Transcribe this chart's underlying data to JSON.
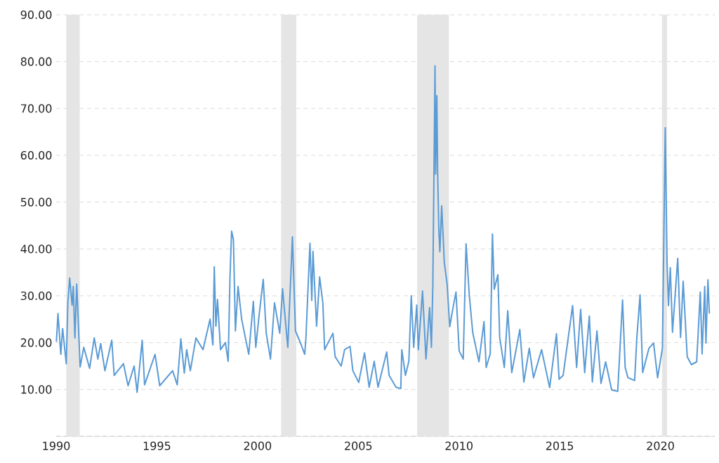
{
  "chart_data": {
    "type": "line",
    "color": "#5b9bd5",
    "grid": "y",
    "xlim": [
      1990,
      2022.7
    ],
    "ylim": [
      0,
      90
    ],
    "xticks": [
      1990,
      1995,
      2000,
      2005,
      2010,
      2015,
      2020
    ],
    "yticks": [
      {
        "value": 0,
        "label": null
      },
      {
        "value": 10,
        "label": "10.00"
      },
      {
        "value": 20,
        "label": "20.00"
      },
      {
        "value": 30,
        "label": "30.00"
      },
      {
        "value": 40,
        "label": "40.00"
      },
      {
        "value": 50,
        "label": "50.00"
      },
      {
        "value": 60,
        "label": "60.00"
      },
      {
        "value": 70,
        "label": "70.00"
      },
      {
        "value": 80,
        "label": "80.00"
      },
      {
        "value": 90,
        "label": "90.00"
      }
    ],
    "bands": [
      {
        "axis": "x",
        "from": 1990.5,
        "to": 1991.17,
        "color": "#e5e5e5"
      },
      {
        "axis": "x",
        "from": 2001.17,
        "to": 2001.92,
        "color": "#e5e5e5"
      },
      {
        "axis": "x",
        "from": 2007.92,
        "to": 2009.5,
        "color": "#e5e5e5"
      },
      {
        "axis": "x",
        "from": 2020.08,
        "to": 2020.33,
        "color": "#e5e5e5"
      }
    ],
    "x": [
      1990.01,
      1990.09,
      1990.23,
      1990.32,
      1990.5,
      1990.58,
      1990.67,
      1990.79,
      1990.85,
      1990.93,
      1991.02,
      1991.19,
      1991.37,
      1991.66,
      1991.89,
      1992.07,
      1992.21,
      1992.42,
      1992.76,
      1992.88,
      1993.34,
      1993.57,
      1993.87,
      1994.02,
      1994.27,
      1994.39,
      1994.91,
      1995.14,
      1995.78,
      1996.01,
      1996.19,
      1996.36,
      1996.48,
      1996.66,
      1996.94,
      1997.29,
      1997.64,
      1997.78,
      1997.85,
      1997.93,
      1998.01,
      1998.16,
      1998.4,
      1998.54,
      1998.63,
      1998.71,
      1998.8,
      1998.9,
      1999.03,
      1999.21,
      1999.56,
      1999.79,
      1999.91,
      2000.08,
      2000.28,
      2000.43,
      2000.64,
      2000.84,
      2001.1,
      2001.24,
      2001.5,
      2001.73,
      2001.88,
      2002.17,
      2002.34,
      2002.4,
      2002.6,
      2002.69,
      2002.75,
      2002.93,
      2003.08,
      2003.24,
      2003.33,
      2003.74,
      2003.85,
      2004.15,
      2004.32,
      2004.59,
      2004.73,
      2005.02,
      2005.31,
      2005.54,
      2005.79,
      2005.98,
      2006.41,
      2006.53,
      2006.87,
      2007.11,
      2007.16,
      2007.34,
      2007.51,
      2007.63,
      2007.75,
      2007.9,
      2007.98,
      2008.19,
      2008.36,
      2008.54,
      2008.63,
      2008.7,
      2008.81,
      2008.84,
      2008.9,
      2008.94,
      2009.0,
      2009.05,
      2009.14,
      2009.21,
      2009.27,
      2009.41,
      2009.54,
      2009.7,
      2009.85,
      2010.01,
      2010.21,
      2010.35,
      2010.51,
      2010.68,
      2010.99,
      2011.24,
      2011.35,
      2011.55,
      2011.66,
      2011.75,
      2011.93,
      2012.02,
      2012.25,
      2012.42,
      2012.62,
      2013.02,
      2013.22,
      2013.49,
      2013.7,
      2014.1,
      2014.5,
      2014.84,
      2014.97,
      2015.17,
      2015.64,
      2015.84,
      2016.04,
      2016.24,
      2016.47,
      2016.62,
      2016.85,
      2017.05,
      2017.28,
      2017.58,
      2017.88,
      2018.12,
      2018.25,
      2018.39,
      2018.72,
      2018.83,
      2018.99,
      2019.12,
      2019.43,
      2019.66,
      2019.86,
      2020.1,
      2020.24,
      2020.33,
      2020.4,
      2020.49,
      2020.6,
      2020.86,
      2021.0,
      2021.13,
      2021.33,
      2021.54,
      2021.8,
      2021.98,
      2022.07,
      2022.2,
      2022.26,
      2022.36,
      2022.43
    ],
    "values": [
      20.2,
      26.2,
      17.5,
      23,
      15.5,
      28.5,
      33.8,
      28,
      32,
      21,
      32.5,
      14.8,
      19,
      14.5,
      21,
      16.5,
      19.8,
      14,
      20.5,
      13,
      15.5,
      10.8,
      15,
      9.4,
      20.5,
      11,
      17.5,
      10.8,
      14,
      11,
      20.8,
      13.5,
      18.5,
      14,
      21,
      18.5,
      25,
      19.5,
      36.2,
      23.5,
      29.2,
      18.5,
      20,
      16,
      34,
      43.8,
      42,
      22.5,
      32,
      25,
      17.5,
      28.8,
      19,
      26,
      33.5,
      22,
      16.5,
      28.5,
      22,
      31.5,
      19,
      42.6,
      22.5,
      19.5,
      17.5,
      21,
      41.2,
      29,
      39.5,
      23.5,
      34,
      28.5,
      18.5,
      22,
      17,
      15,
      18.5,
      19.2,
      14,
      11.5,
      17.8,
      10.5,
      16,
      10.5,
      18,
      13,
      10.5,
      10.2,
      18.5,
      13,
      16,
      30,
      19,
      28,
      18.5,
      31,
      16.5,
      27.5,
      19,
      32,
      79.1,
      56,
      72.7,
      56,
      44,
      39.4,
      49.2,
      42.9,
      37.1,
      32.5,
      23.4,
      27.4,
      30.8,
      18.2,
      16.5,
      41.1,
      30.2,
      22.2,
      15.9,
      24.5,
      14.7,
      17.6,
      43.2,
      31.4,
      34.5,
      21.1,
      14.7,
      26.8,
      13.6,
      22.8,
      11.6,
      18.8,
      12.5,
      18.5,
      10.4,
      21.9,
      12.2,
      13,
      27.9,
      14.7,
      27.1,
      13.6,
      25.7,
      11.6,
      22.5,
      11.3,
      15.9,
      9.9,
      9.6,
      29.1,
      14.7,
      12.5,
      11.9,
      21.1,
      30.2,
      13.6,
      18.8,
      19.9,
      12.5,
      18.8,
      65.9,
      37.1,
      27.9,
      36,
      22.2,
      38,
      21.1,
      33.1,
      17,
      15.3,
      15.9,
      30.8,
      17.6,
      32,
      19.9,
      33.4,
      26.2
    ]
  }
}
